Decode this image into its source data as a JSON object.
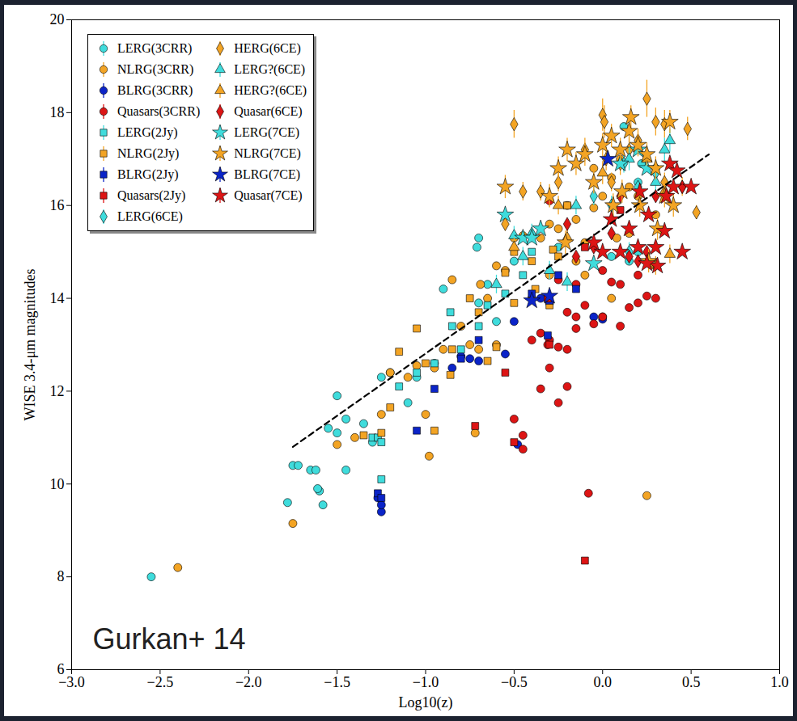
{
  "chart_data": {
    "type": "scatter",
    "xlabel": "Log10(z)",
    "ylabel": "WISE 3.4-μm magnitudes",
    "annotation": "Gurkan+ 14",
    "xlim": [
      -3,
      1
    ],
    "ylim": [
      6,
      20
    ],
    "xticks": [
      {
        "value": -3,
        "label": "−3.0"
      },
      {
        "value": -2.5,
        "label": "−2.5"
      },
      {
        "value": -2,
        "label": "−2.0"
      },
      {
        "value": -1.5,
        "label": "−1.5"
      },
      {
        "value": -1,
        "label": "−1.0"
      },
      {
        "value": -0.5,
        "label": "−0.5"
      },
      {
        "value": 0,
        "label": "0.0"
      },
      {
        "value": 0.5,
        "label": "0.5"
      },
      {
        "value": 1,
        "label": "1.0"
      }
    ],
    "yticks": [
      6,
      8,
      10,
      12,
      14,
      16,
      18,
      20
    ],
    "legend": "upper left",
    "series": [
      {
        "name": "LERG(3CRR)",
        "color": "#3fdcdc",
        "marker": "circle",
        "x": [
          -2.55,
          -1.78,
          -1.75,
          -1.72,
          -1.65,
          -1.6,
          -1.61,
          -1.58,
          -1.62,
          -1.55,
          -1.5,
          -1.45,
          -1.5,
          -1.45,
          -1.35,
          -1.3,
          -1.25,
          -1.2,
          -1.1,
          -1.05,
          -0.95,
          -0.9,
          -0.7,
          -0.71,
          -0.65,
          -0.7,
          -0.6,
          -0.5,
          0.12,
          0.2,
          -0.25,
          0.05,
          0.15,
          0.2,
          0.22,
          0.3
        ],
        "values": [
          8.0,
          9.6,
          10.4,
          10.4,
          10.3,
          9.85,
          9.9,
          9.55,
          10.3,
          11.2,
          11.1,
          10.3,
          11.9,
          11.4,
          11.3,
          10.9,
          12.3,
          12.4,
          11.75,
          12.3,
          12.6,
          14.2,
          15.3,
          15.1,
          14.3,
          13.9,
          13.5,
          14.8,
          17.7,
          16.5,
          15.1,
          14.9,
          14.8,
          15.0,
          16.9,
          16.8
        ]
      },
      {
        "name": "NLRG(3CRR)",
        "color": "#f3a424",
        "marker": "circle",
        "x": [
          -2.4,
          -1.75,
          -1.5,
          -1.4,
          -1.25,
          -1.2,
          -1.1,
          -1.05,
          -1.0,
          -0.95,
          -0.98,
          -0.9,
          -0.85,
          -0.8,
          -0.75,
          -0.7,
          -0.72,
          -0.69,
          -0.65,
          -0.6,
          -0.55,
          -0.5,
          -0.45,
          -0.4,
          -0.35,
          -0.3,
          -0.25,
          -0.2,
          -0.15,
          -0.1,
          -0.05,
          0.0,
          0.05,
          0.1,
          0.15,
          -0.1,
          0.0,
          0.05,
          0.15,
          0.25,
          0.2,
          0.3,
          -0.3,
          -0.15,
          0.08,
          -0.05,
          -0.6
        ],
        "values": [
          8.2,
          9.15,
          10.85,
          11.0,
          11.5,
          12.4,
          12.3,
          12.55,
          11.5,
          12.5,
          10.6,
          12.9,
          14.4,
          13.4,
          13.0,
          12.9,
          11.1,
          14.3,
          14.0,
          13.0,
          14.6,
          15.3,
          15.35,
          14.0,
          15.3,
          15.6,
          15.5,
          16.0,
          15.7,
          15.2,
          15.95,
          16.2,
          16.6,
          17.0,
          16.4,
          14.5,
          13.6,
          14.0,
          15.4,
          9.75,
          16.2,
          15.8,
          14.5,
          14.8,
          15.3,
          16.8,
          14.7
        ]
      },
      {
        "name": "BLRG(3CRR)",
        "color": "#0b24c8",
        "marker": "circle",
        "x": [
          -1.25,
          -1.25,
          -1.27,
          -0.48,
          -0.55,
          -0.5,
          -0.8,
          -0.75,
          -0.7,
          -0.85,
          -0.05,
          0.0,
          -0.3,
          -0.35
        ],
        "values": [
          9.4,
          9.55,
          9.7,
          10.85,
          12.8,
          13.5,
          12.75,
          12.7,
          12.65,
          12.5,
          13.6,
          13.55,
          13.9,
          14.0
        ]
      },
      {
        "name": "Quasars(3CRR)",
        "color": "#dd1515",
        "marker": "circle",
        "x": [
          -0.08,
          -0.45,
          -0.5,
          -0.45,
          -0.35,
          -0.25,
          -0.2,
          -0.3,
          -0.25,
          -0.3,
          -0.2,
          -0.15,
          -0.35,
          -0.31,
          -0.15,
          -0.1,
          -0.05,
          0.0,
          -0.2,
          0.05,
          0.1,
          0.1,
          0.15,
          0.2,
          0.25,
          0.3,
          0.2,
          -0.3,
          0.0,
          -0.4,
          -0.25,
          -0.15
        ],
        "values": [
          9.8,
          10.75,
          11.4,
          11.05,
          12.05,
          11.75,
          12.1,
          12.5,
          12.95,
          13.1,
          12.9,
          13.35,
          13.25,
          13.0,
          13.6,
          13.85,
          13.45,
          13.6,
          13.7,
          14.35,
          13.4,
          14.3,
          13.8,
          13.9,
          14.05,
          14.0,
          14.5,
          16.1,
          14.6,
          13.1,
          14.4,
          14.3
        ]
      },
      {
        "name": "LERG(2Jy)",
        "color": "#3fdcdc",
        "marker": "square",
        "x": [
          -1.25,
          -1.3,
          -1.27,
          -1.25,
          -1.15,
          -1.05,
          -0.95,
          -0.85,
          -0.86,
          -0.8,
          -0.7,
          -0.65,
          -0.55,
          -0.45,
          -0.4
        ],
        "values": [
          10.1,
          11.0,
          11.0,
          10.9,
          12.1,
          12.4,
          12.6,
          13.4,
          13.7,
          12.9,
          13.4,
          13.85,
          14.1,
          14.5,
          15.0
        ]
      },
      {
        "name": "NLRG(2Jy)",
        "color": "#f3a424",
        "marker": "square",
        "x": [
          -1.35,
          -1.25,
          -1.2,
          -1.15,
          -1.05,
          -1.0,
          -0.95,
          -0.85,
          -0.86,
          -0.75,
          -0.7,
          -0.65,
          -0.6,
          -0.55,
          -0.5,
          -0.4,
          -0.38,
          -0.28,
          -0.25,
          -0.2,
          -0.3,
          -0.5
        ],
        "values": [
          11.05,
          11.1,
          11.65,
          12.85,
          13.35,
          12.6,
          11.15,
          12.9,
          12.35,
          14.0,
          13.7,
          12.65,
          12.95,
          14.55,
          13.9,
          14.8,
          14.2,
          15.05,
          14.9,
          16.0,
          13.85,
          15.0
        ]
      },
      {
        "name": "BLRG(2Jy)",
        "color": "#0b24c8",
        "marker": "square",
        "x": [
          -1.27,
          -1.25,
          -1.05,
          -0.95,
          -0.8,
          -0.7,
          -0.4,
          -0.25,
          -0.15,
          -0.3,
          -0.31
        ],
        "values": [
          9.8,
          9.7,
          11.15,
          12.05,
          12.7,
          13.1,
          14.1,
          14.5,
          14.2,
          13.95,
          13.2
        ]
      },
      {
        "name": "Quasars(2Jy)",
        "color": "#dd1515",
        "marker": "square",
        "x": [
          -0.1,
          -0.72,
          -0.5,
          -0.55,
          -0.3,
          -0.31,
          -0.1,
          0.1
        ],
        "values": [
          8.35,
          11.25,
          10.9,
          12.4,
          13.0,
          14.0,
          15.1,
          15.9
        ]
      },
      {
        "name": "LERG(6CE)",
        "color": "#3fdcdc",
        "marker": "diamond",
        "x": [
          0.15,
          0.2,
          0.12,
          -0.05,
          0.3,
          0.05
        ],
        "values": [
          15.0,
          16.4,
          16.9,
          16.2,
          16.7,
          16.0
        ],
        "errors": [
          0.2,
          0.2,
          0.2,
          0.2,
          0.2,
          0.2
        ]
      },
      {
        "name": "HERG(6CE)",
        "color": "#f3a424",
        "marker": "diamond",
        "x": [
          -0.5,
          0.0,
          0.01,
          0.25,
          0.35,
          0.48,
          0.53,
          0.15,
          0.1,
          0.05,
          0.2,
          0.3,
          -0.1,
          -0.35,
          -0.25,
          -0.45,
          -0.55,
          0.02,
          0.35,
          0.45
        ],
        "values": [
          17.75,
          17.95,
          17.8,
          18.3,
          17.75,
          17.65,
          15.85,
          17.2,
          16.9,
          16.5,
          17.4,
          17.8,
          17.2,
          16.3,
          16.5,
          16.3,
          15.6,
          17.0,
          16.5,
          16.4
        ],
        "errors": [
          0.3,
          0.35,
          0.35,
          0.4,
          0.3,
          0.25,
          0.15,
          0.25,
          0.25,
          0.2,
          0.25,
          0.3,
          0.25,
          0.2,
          0.2,
          0.2,
          0.15,
          0.25,
          0.2,
          0.2
        ]
      },
      {
        "name": "LERG?(6CE)",
        "color": "#3fdcdc",
        "marker": "triangle",
        "x": [
          -0.45,
          -0.5,
          -0.4,
          -0.3,
          -0.2,
          -0.15,
          -0.6,
          0.38,
          0.35,
          0.3,
          0.15
        ],
        "values": [
          14.9,
          15.35,
          15.4,
          14.6,
          14.35,
          16.0,
          14.3,
          17.4,
          17.2,
          16.5,
          17.0
        ],
        "errors": [
          0.2,
          0.2,
          0.2,
          0.2,
          0.2,
          0.2,
          0.2,
          0.25,
          0.25,
          0.2,
          0.25
        ]
      },
      {
        "name": "HERG?(6CE)",
        "color": "#f3a424",
        "marker": "triangle",
        "x": [
          0.38,
          0.3,
          0.35,
          -0.5,
          -0.2,
          0.0,
          -0.25,
          0.25
        ],
        "values": [
          14.95,
          14.7,
          16.3,
          15.1,
          15.3,
          16.7,
          16.0,
          17.0
        ],
        "errors": [
          0.2,
          0.2,
          0.2,
          0.2,
          0.2,
          0.25,
          0.2,
          0.25
        ]
      },
      {
        "name": "Quasar(6CE)",
        "color": "#dd1515",
        "marker": "diamond",
        "x": [
          0.1,
          0.05,
          0.2,
          -0.05,
          -0.15,
          0.25,
          0.45,
          0.3,
          -0.2,
          0.15
        ],
        "values": [
          16.2,
          15.4,
          14.8,
          15.1,
          14.9,
          15.0,
          16.4,
          16.2,
          15.6,
          14.9
        ]
      },
      {
        "name": "LERG(7CE)",
        "color": "#3fdcdc",
        "marker": "star",
        "x": [
          -0.55,
          -0.45,
          -0.4,
          -0.35,
          -0.05,
          0.1,
          0.2,
          0.25
        ],
        "values": [
          15.8,
          15.3,
          15.3,
          15.5,
          14.75,
          16.9,
          17.2,
          16.8
        ]
      },
      {
        "name": "NLRG(7CE)",
        "color": "#f3a424",
        "marker": "star",
        "x": [
          -0.55,
          -0.25,
          -0.2,
          -0.15,
          -0.1,
          0.0,
          0.05,
          0.1,
          0.15,
          0.2,
          0.25,
          0.3,
          0.35,
          0.38,
          0.4,
          -0.3,
          -0.05,
          0.11,
          0.21,
          0.31,
          0.26,
          -0.21,
          0.16,
          0.06
        ],
        "values": [
          16.4,
          16.8,
          17.2,
          16.9,
          17.1,
          17.3,
          17.5,
          17.2,
          17.6,
          17.3,
          17.1,
          16.8,
          16.2,
          17.8,
          16.0,
          16.2,
          16.5,
          16.3,
          16.0,
          15.5,
          14.8,
          15.2,
          17.9,
          16.0
        ],
        "errors": [
          0.25,
          0.25,
          0.25,
          0.25,
          0.25,
          0.25,
          0.25,
          0.25,
          0.25,
          0.25,
          0.25,
          0.25,
          0.25,
          0.25,
          0.25,
          0.25,
          0.25,
          0.25,
          0.25,
          0.25,
          0.25,
          0.25,
          0.25,
          0.25
        ]
      },
      {
        "name": "BLRG(7CE)",
        "color": "#0b24c8",
        "marker": "star",
        "x": [
          -0.3,
          -0.4,
          0.03
        ],
        "values": [
          14.05,
          13.95,
          17.0
        ]
      },
      {
        "name": "Quasar(7CE)",
        "color": "#dd1515",
        "marker": "star",
        "x": [
          0.0,
          0.1,
          0.2,
          0.3,
          0.35,
          0.31,
          0.25,
          0.45,
          0.4,
          0.5,
          0.38,
          0.42,
          0.36,
          -0.05,
          0.15,
          0.05,
          0.21,
          0.26
        ],
        "values": [
          15.0,
          15.0,
          15.1,
          15.1,
          15.45,
          14.7,
          14.75,
          15.0,
          16.4,
          16.4,
          16.9,
          16.75,
          16.2,
          15.2,
          15.5,
          15.7,
          16.3,
          15.8
        ]
      },
      {
        "type": "line",
        "line_style": "dashed",
        "color": "#000000",
        "x": [
          -1.75,
          0.6
        ],
        "values": [
          10.8,
          17.1
        ]
      }
    ]
  }
}
